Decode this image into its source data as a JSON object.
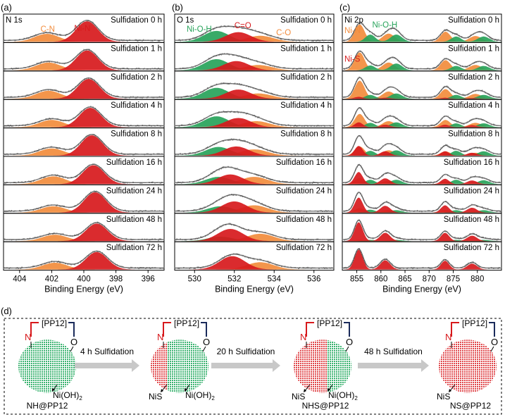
{
  "panel_labels": {
    "a": "(a)",
    "b": "(b)",
    "c": "(c)",
    "d": "(d)"
  },
  "colors": {
    "red": "#d7191c",
    "orange": "#f28c3c",
    "green": "#27a35a",
    "envelope": "#555555",
    "dots": "#888888"
  },
  "chart_data": [
    {
      "type": "line",
      "panel": "(a)",
      "title": "N 1s",
      "xlabel": "Binding Energy (eV)",
      "ylabel": "",
      "xlim": [
        405,
        395
      ],
      "xticks": [
        396,
        398,
        400,
        402,
        404
      ],
      "rows": [
        "Sulfidation 0 h",
        "Sulfidation 1 h",
        "Sulfidation 2 h",
        "Sulfidation 4 h",
        "Sulfidation 8 h",
        "Sulfidation 16 h",
        "Sulfidation 24 h",
        "Sulfidation 48 h",
        "Sulfidation 72 h"
      ],
      "peak_labels": [
        {
          "text": "Ni-N",
          "color": "#d7191c"
        },
        {
          "text": "C-N",
          "color": "#f28c3c"
        }
      ],
      "series": [
        {
          "name": "Ni-N",
          "color": "#d7191c",
          "centers": [
            399.8,
            399.8,
            399.7,
            399.6,
            399.5,
            399.4,
            399.3,
            399.2,
            399.2
          ],
          "fwhm": 1.6,
          "amps": [
            0.85,
            0.82,
            0.82,
            0.8,
            0.84,
            0.78,
            0.84,
            0.72,
            0.72
          ]
        },
        {
          "name": "C-N",
          "color": "#f28c3c",
          "centers": [
            402.3,
            402.2,
            402.2,
            402.0,
            402.0,
            401.9,
            401.9,
            401.8,
            401.8
          ],
          "fwhm": 1.8,
          "amps": [
            0.33,
            0.32,
            0.33,
            0.3,
            0.3,
            0.32,
            0.26,
            0.26,
            0.28
          ]
        }
      ]
    },
    {
      "type": "line",
      "panel": "(b)",
      "title": "O 1s",
      "xlabel": "Binding Energy (eV)",
      "ylabel": "",
      "xlim": [
        529,
        537
      ],
      "xticks": [
        530,
        532,
        534,
        536
      ],
      "rows": [
        "Sulfidation 0 h",
        "Sulfidation 1 h",
        "Sulfidation 2 h",
        "Sulfidation 4 h",
        "Sulfidation 8 h",
        "Sulfidation 16 h",
        "Sulfidation 24 h",
        "Sulfidation 48 h",
        "Sulfidation 72 h"
      ],
      "peak_labels": [
        {
          "text": "Ni-O-H",
          "color": "#27a35a"
        },
        {
          "text": "C=O",
          "color": "#d7191c"
        },
        {
          "text": "C-O",
          "color": "#f28c3c"
        }
      ],
      "series": [
        {
          "name": "Ni-O-H",
          "color": "#27a35a",
          "centers": [
            531.1,
            531.1,
            531.1,
            531.1,
            531.2,
            531.2,
            531.3,
            531.3,
            531.3
          ],
          "fwhm": 1.5,
          "amps": [
            0.45,
            0.46,
            0.45,
            0.45,
            0.36,
            0.3,
            0.26,
            0.18,
            0.0
          ]
        },
        {
          "name": "C=O",
          "color": "#d7191c",
          "centers": [
            532.2,
            532.1,
            532.2,
            532.2,
            532.1,
            531.8,
            532.0,
            531.8,
            531.9
          ],
          "fwhm": 1.5,
          "amps": [
            0.4,
            0.38,
            0.38,
            0.38,
            0.38,
            0.4,
            0.46,
            0.5,
            0.55
          ]
        },
        {
          "name": "C-O",
          "color": "#f28c3c",
          "centers": [
            533.3,
            533.2,
            533.2,
            533.1,
            533.0,
            533.0,
            533.0,
            533.3,
            533.3
          ],
          "fwhm": 1.6,
          "amps": [
            0.25,
            0.22,
            0.22,
            0.25,
            0.26,
            0.3,
            0.3,
            0.3,
            0.3
          ]
        }
      ]
    },
    {
      "type": "line",
      "panel": "(c)",
      "title": "Ni 2p",
      "xlabel": "Binding Energy (eV)",
      "ylabel": "",
      "xlim": [
        852,
        885
      ],
      "xticks": [
        855,
        860,
        865,
        870,
        875,
        880
      ],
      "rows": [
        "Sulfidation 0 h",
        "Sulfidation 1 h",
        "Sulfidation 2 h",
        "Sulfidation 4 h",
        "Sulfidation 8 h",
        "Sulfidation 16 h",
        "Sulfidation 24 h",
        "Sulfidation 48 h",
        "Sulfidation 72 h"
      ],
      "peak_labels": [
        {
          "text": "Ni-N",
          "color": "#f28c3c"
        },
        {
          "text": "Ni-O-H",
          "color": "#27a35a"
        },
        {
          "text": "Ni-S",
          "color": "#d7191c"
        }
      ],
      "series": [
        {
          "name": "Ni-N",
          "color": "#f28c3c",
          "centers": [
            855.6,
            861.6,
            873.4,
            879.6
          ],
          "fwhm": [
            2.4,
            3.0,
            2.4,
            3.0
          ],
          "amps": [
            [
              0.72,
              0.34,
              0.42,
              0.24
            ],
            [
              0.74,
              0.32,
              0.42,
              0.22
            ],
            [
              0.75,
              0.3,
              0.4,
              0.2
            ],
            [
              0.55,
              0.25,
              0.3,
              0.18
            ],
            [
              0.38,
              0.22,
              0.18,
              0.12
            ],
            [
              0.25,
              0.15,
              0.12,
              0.08
            ],
            [
              0.18,
              0.1,
              0.1,
              0.06
            ],
            [
              0.05,
              0.03,
              0.02,
              0.02
            ],
            [
              0.0,
              0.0,
              0.0,
              0.0
            ]
          ]
        },
        {
          "name": "Ni-O-H",
          "color": "#27a35a",
          "centers": [
            857.8,
            863.2,
            875.6,
            881.3
          ],
          "fwhm": [
            2.4,
            2.8,
            2.4,
            2.8
          ],
          "amps": [
            [
              0.3,
              0.3,
              0.22,
              0.22
            ],
            [
              0.2,
              0.28,
              0.18,
              0.18
            ],
            [
              0.16,
              0.22,
              0.16,
              0.16
            ],
            [
              0.18,
              0.2,
              0.16,
              0.16
            ],
            [
              0.2,
              0.22,
              0.2,
              0.18
            ],
            [
              0.18,
              0.18,
              0.18,
              0.16
            ],
            [
              0.12,
              0.1,
              0.1,
              0.1
            ],
            [
              0.05,
              0.05,
              0.05,
              0.05
            ],
            [
              0.0,
              0.0,
              0.0,
              0.0
            ]
          ]
        },
        {
          "name": "Ni-S",
          "color": "#d7191c",
          "centers": [
            855.4,
            860.9,
            873.3,
            878.9
          ],
          "fwhm": [
            2.0,
            2.4,
            2.0,
            2.4
          ],
          "amps": [
            [
              0.0,
              0.0,
              0.0,
              0.0
            ],
            [
              0.0,
              0.0,
              0.0,
              0.0
            ],
            [
              0.08,
              0.04,
              0.04,
              0.03
            ],
            [
              0.2,
              0.1,
              0.1,
              0.08
            ],
            [
              0.4,
              0.18,
              0.18,
              0.12
            ],
            [
              0.5,
              0.24,
              0.22,
              0.15
            ],
            [
              0.62,
              0.28,
              0.3,
              0.2
            ],
            [
              0.78,
              0.34,
              0.34,
              0.22
            ],
            [
              0.82,
              0.38,
              0.36,
              0.24
            ]
          ]
        }
      ]
    }
  ],
  "scheme": {
    "stages": [
      {
        "ligand_label": "[PP12]",
        "n_label": "N",
        "o_label": "O",
        "composition": "green",
        "products": [
          "Ni(OH)2"
        ],
        "name": "NH@PP12"
      },
      {
        "ligand_label": "[PP12]",
        "n_label": "N",
        "o_label": "O",
        "composition": "mostly-green",
        "products": [
          "NiS",
          "Ni(OH)2"
        ],
        "name": ""
      },
      {
        "ligand_label": "[PP12]",
        "n_label": "N",
        "o_label": "O",
        "composition": "half",
        "products": [
          "NiS",
          "Ni(OH)2"
        ],
        "name": "NHS@PP12"
      },
      {
        "ligand_label": "[PP12]",
        "n_label": "N",
        "o_label": "O",
        "composition": "red",
        "products": [
          "NiS"
        ],
        "name": "NS@PP12"
      }
    ],
    "steps": [
      "4 h Sulfidation",
      "20 h Sulfidation",
      "48 h Sulfidation"
    ],
    "product_text": {
      "NiS": "NiS",
      "NiOH2_base": "Ni(OH)",
      "NiOH2_sub": "2"
    }
  }
}
